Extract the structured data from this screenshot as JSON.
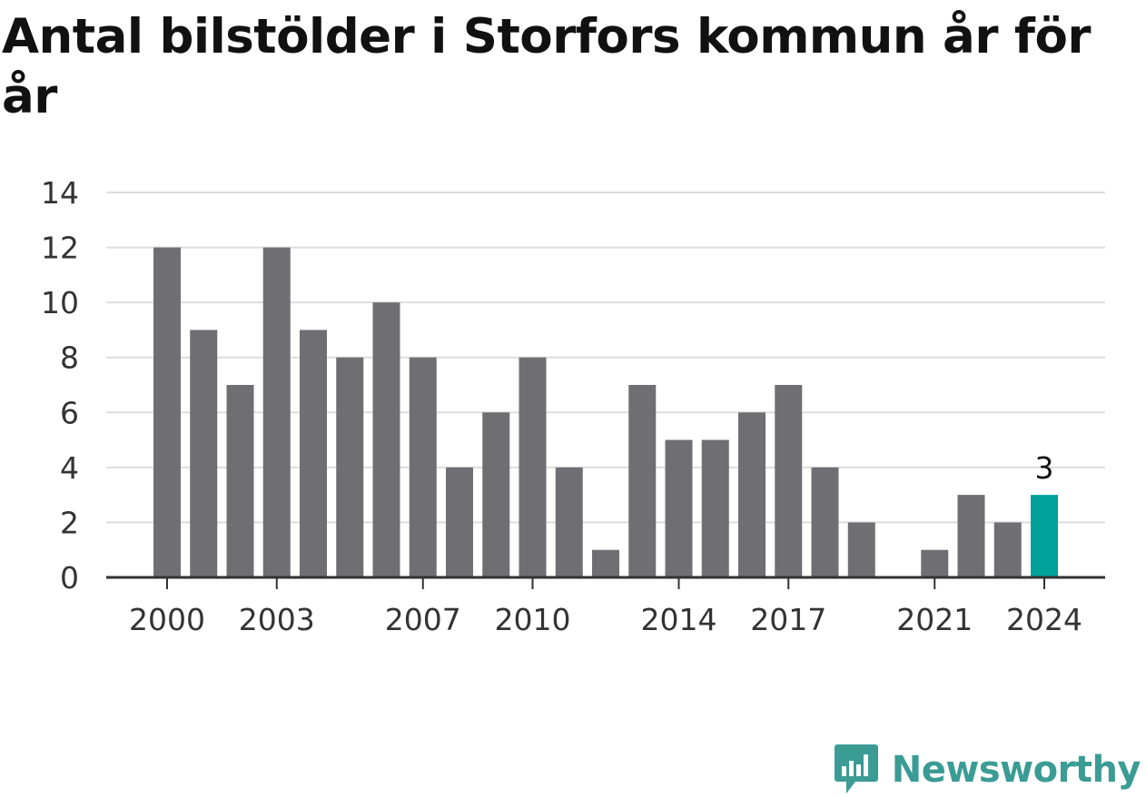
{
  "title": "Antal bilstölder i Storfors kommun år för år",
  "brand": {
    "name": "Newsworthy"
  },
  "colors": {
    "bar": "#6f6e73",
    "highlight": "#00a19a",
    "grid": "#dddddd",
    "axis": "#333333"
  },
  "chart_data": {
    "type": "bar",
    "title": "Antal bilstölder i Storfors kommun år för år",
    "x": [
      2000,
      2001,
      2002,
      2003,
      2004,
      2005,
      2006,
      2007,
      2008,
      2009,
      2010,
      2011,
      2012,
      2013,
      2014,
      2015,
      2016,
      2017,
      2018,
      2019,
      2020,
      2021,
      2022,
      2023,
      2024
    ],
    "values": [
      12,
      9,
      7,
      12,
      9,
      8,
      10,
      8,
      4,
      6,
      8,
      4,
      1,
      7,
      5,
      5,
      6,
      7,
      4,
      2,
      0,
      1,
      3,
      2,
      3
    ],
    "x_tick_labels": [
      "2000",
      "2003",
      "2007",
      "2010",
      "2014",
      "2017",
      "2021",
      "2024"
    ],
    "y_ticks": [
      0,
      2,
      4,
      6,
      8,
      10,
      12,
      14
    ],
    "ylim": [
      0,
      14
    ],
    "highlight": {
      "x": 2024,
      "label": "3"
    },
    "xlabel": "",
    "ylabel": "",
    "grid": true,
    "legend": "none"
  }
}
